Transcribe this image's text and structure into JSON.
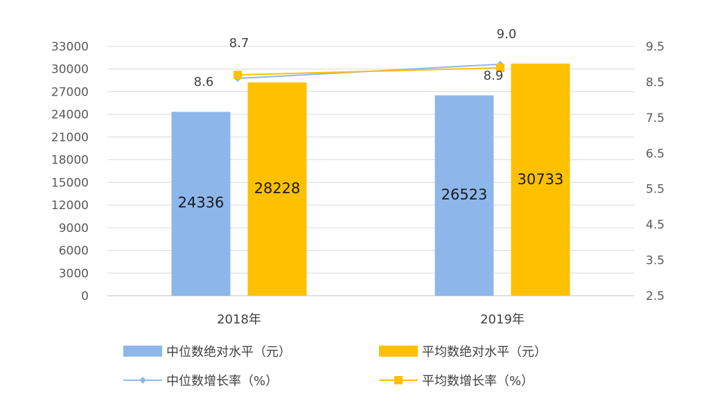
{
  "chart_data": {
    "type": "bar",
    "categories": [
      "2018年",
      "2019年"
    ],
    "series": [
      {
        "name": "中位数绝对水平（元）",
        "kind": "bar",
        "axis": "left",
        "color": "#8db7eb",
        "values": [
          24336,
          26523
        ]
      },
      {
        "name": "平均数绝对水平（元）",
        "kind": "bar",
        "axis": "left",
        "color": "#ffc000",
        "values": [
          28228,
          30733
        ]
      },
      {
        "name": "中位数增长率（%）",
        "kind": "line",
        "axis": "right",
        "color": "#8db7eb",
        "marker": "diamond",
        "values": [
          8.6,
          9.0
        ]
      },
      {
        "name": "平均数增长率（%）",
        "kind": "line",
        "axis": "right",
        "color": "#ffc000",
        "marker": "square",
        "values": [
          8.7,
          8.9
        ]
      }
    ],
    "y_left": {
      "min": 0,
      "max": 33000,
      "ticks": [
        0,
        3000,
        6000,
        9000,
        12000,
        15000,
        18000,
        21000,
        24000,
        27000,
        30000,
        33000
      ]
    },
    "y_right": {
      "min": 2.5,
      "max": 9.5,
      "ticks": [
        "2.5",
        "3.5",
        "4.5",
        "5.5",
        "6.5",
        "7.5",
        "8.5",
        "9.5"
      ]
    },
    "bar_labels": [
      [
        "24336",
        "26523"
      ],
      [
        "28228",
        "30733"
      ]
    ],
    "line_labels": [
      [
        "8.6",
        "9.0"
      ],
      [
        "8.7",
        "8.9"
      ]
    ],
    "legend_position": "bottom",
    "grid": true
  }
}
